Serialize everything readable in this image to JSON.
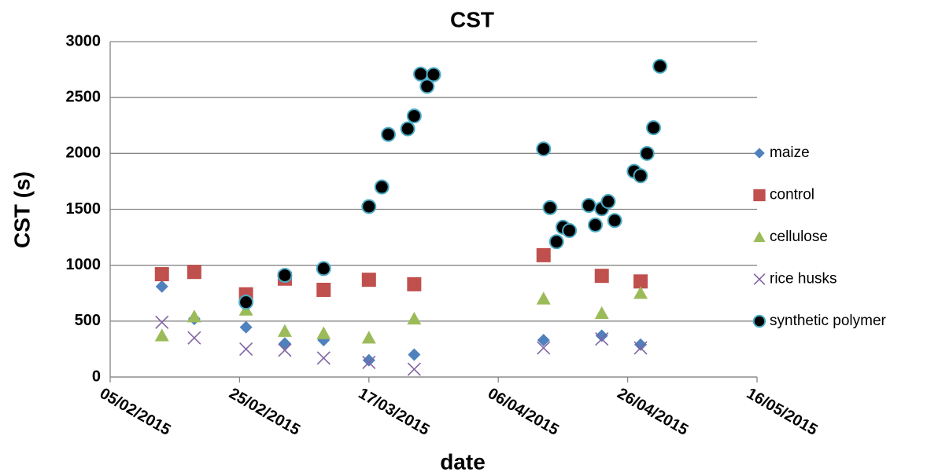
{
  "chart_data": {
    "type": "scatter",
    "title": "CST",
    "x_label": "date",
    "y_label": "CST (s)",
    "xlim": [
      {
        "value": "2015-02-05",
        "label": "05/02/2015"
      },
      {
        "value": "2015-05-16",
        "label": "16/05/2015"
      }
    ],
    "xticks": [
      {
        "value": "2015-02-05",
        "label": "05/02/2015"
      },
      {
        "value": "2015-02-25",
        "label": "25/02/2015"
      },
      {
        "value": "2015-03-17",
        "label": "17/03/2015"
      },
      {
        "value": "2015-04-06",
        "label": "06/04/2015"
      },
      {
        "value": "2015-04-26",
        "label": "26/04/2015"
      },
      {
        "value": "2015-05-16",
        "label": "16/05/2015"
      }
    ],
    "ylim": [
      0,
      3000
    ],
    "yticks": [
      0,
      500,
      1000,
      1500,
      2000,
      2500,
      3000
    ],
    "grid": true,
    "legend": "right",
    "series": [
      {
        "name": "maize",
        "color": "#4f81bd",
        "marker": "diamond",
        "x": [
          "2015-02-13",
          "2015-02-18",
          "2015-02-26",
          "2015-03-04",
          "2015-03-10",
          "2015-03-17",
          "2015-03-24",
          "2015-04-13",
          "2015-04-22",
          "2015-04-28"
        ],
        "values": [
          810,
          520,
          445,
          300,
          330,
          150,
          200,
          330,
          370,
          290
        ]
      },
      {
        "name": "control",
        "color": "#c0504d",
        "marker": "square",
        "x": [
          "2015-02-13",
          "2015-02-18",
          "2015-02-26",
          "2015-03-04",
          "2015-03-10",
          "2015-03-17",
          "2015-03-24",
          "2015-04-13",
          "2015-04-22",
          "2015-04-28"
        ],
        "values": [
          920,
          940,
          740,
          880,
          780,
          870,
          830,
          1090,
          905,
          855
        ]
      },
      {
        "name": "cellulose",
        "color": "#9bbb59",
        "marker": "triangle",
        "x": [
          "2015-02-13",
          "2015-02-18",
          "2015-02-26",
          "2015-03-04",
          "2015-03-10",
          "2015-03-17",
          "2015-03-24",
          "2015-04-13",
          "2015-04-22",
          "2015-04-28"
        ],
        "values": [
          370,
          540,
          600,
          410,
          390,
          350,
          520,
          700,
          570,
          750
        ]
      },
      {
        "name": "rice husks",
        "color": "#8064a2",
        "marker": "cross",
        "x": [
          "2015-02-13",
          "2015-02-18",
          "2015-02-26",
          "2015-03-04",
          "2015-03-10",
          "2015-03-17",
          "2015-03-24",
          "2015-04-13",
          "2015-04-22",
          "2015-04-28"
        ],
        "values": [
          490,
          350,
          250,
          240,
          170,
          130,
          70,
          260,
          340,
          260
        ]
      },
      {
        "name": "synthetic polymer",
        "color": "#000000",
        "marker": "circle",
        "x": [
          "2015-02-26",
          "2015-03-04",
          "2015-03-10",
          "2015-03-17",
          "2015-03-19",
          "2015-03-20",
          "2015-03-23",
          "2015-03-24",
          "2015-03-25",
          "2015-03-26",
          "2015-03-27",
          "2015-04-13",
          "2015-04-14",
          "2015-04-15",
          "2015-04-16",
          "2015-04-17",
          "2015-04-20",
          "2015-04-21",
          "2015-04-22",
          "2015-04-23",
          "2015-04-24",
          "2015-04-27",
          "2015-04-28",
          "2015-04-29",
          "2015-04-30",
          "2015-05-01"
        ],
        "values": [
          670,
          910,
          970,
          1525,
          1700,
          2170,
          2220,
          2335,
          2710,
          2600,
          2705,
          2040,
          1515,
          1210,
          1340,
          1310,
          1535,
          1360,
          1505,
          1570,
          1400,
          1840,
          1800,
          2000,
          2230,
          2780
        ]
      }
    ]
  }
}
